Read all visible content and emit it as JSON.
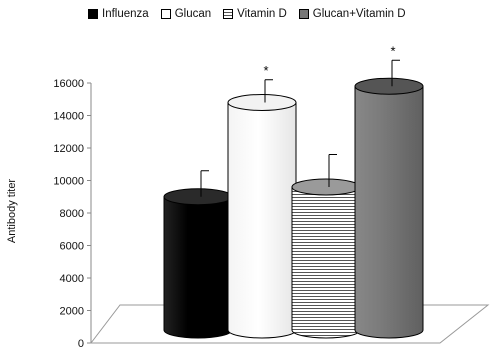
{
  "chart_data": {
    "type": "bar",
    "title": "",
    "xlabel": "",
    "ylabel": "Antibody titer",
    "ylim": [
      0,
      16000
    ],
    "yticks": [
      "0",
      "2000",
      "4000",
      "6000",
      "8000",
      "10000",
      "12000",
      "14000",
      "16000"
    ],
    "legend_position": "top",
    "categories": [
      "Influenza",
      "Glucan",
      "Vitamin D",
      "Glucan+Vitamin D"
    ],
    "values": [
      9000,
      14800,
      9600,
      15800
    ],
    "errors": [
      1600,
      1400,
      2000,
      1600
    ],
    "significance": [
      "",
      "*",
      "",
      "*"
    ],
    "series": [
      {
        "name": "Influenza",
        "color": "#000000",
        "pattern": "solid"
      },
      {
        "name": "Glucan",
        "color": "#ffffff",
        "pattern": "solid"
      },
      {
        "name": "Vitamin D",
        "color": "#ffffff",
        "pattern": "horizontal-lines"
      },
      {
        "name": "Glucan+Vitamin D",
        "color": "#777777",
        "pattern": "solid"
      }
    ]
  }
}
